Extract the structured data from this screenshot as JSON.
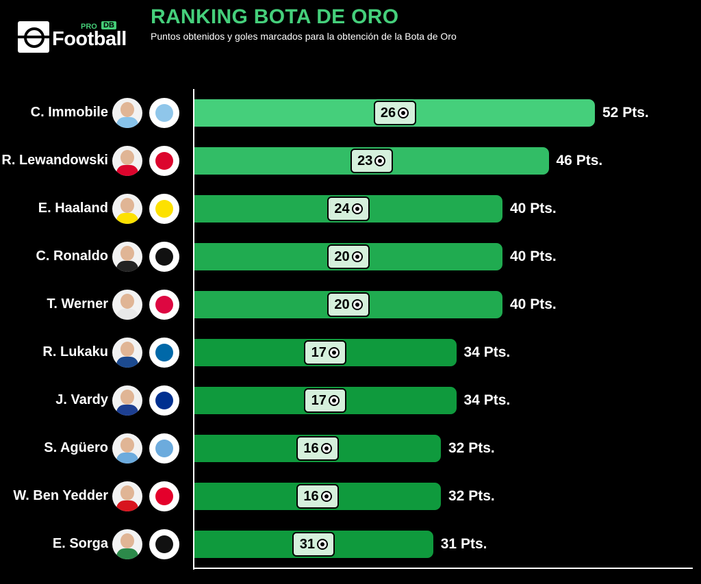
{
  "header": {
    "logo_pro": "PRO",
    "logo_db": "DB",
    "logo_word": "Football",
    "title": "RANKING BOTA DE ORO",
    "subtitle": "Puntos obtenidos y goles marcados para la obtención de la Bota de Oro"
  },
  "colors": {
    "bar_light": "#45cf7b",
    "bar_dark": "#0f9a3d",
    "goal_badge": "#d5f0dc",
    "title": "#45cf7b"
  },
  "chart_data": {
    "type": "bar",
    "orientation": "horizontal",
    "title": "RANKING BOTA DE ORO",
    "subtitle": "Puntos obtenidos y goles marcados para la obtención de la Bota de Oro",
    "xlim": [
      0,
      62
    ],
    "grid": false,
    "categories": [
      "C. Immobile",
      "R. Lewandowski",
      "E. Haaland",
      "C. Ronaldo",
      "T. Werner",
      "R. Lukaku",
      "J. Vardy",
      "S. Agüero",
      "W. Ben Yedder",
      "E. Sorga"
    ],
    "points": [
      52,
      46,
      40,
      40,
      40,
      34,
      34,
      32,
      32,
      31
    ],
    "points_labels": [
      "52 Pts.",
      "46 Pts.",
      "40 Pts.",
      "40 Pts.",
      "40 Pts.",
      "34 Pts.",
      "34 Pts.",
      "32 Pts.",
      "32 Pts.",
      "31 Pts."
    ],
    "goals": [
      26,
      23,
      24,
      20,
      20,
      17,
      17,
      16,
      16,
      31
    ],
    "clubs": [
      "lazio-crest-icon",
      "bayern-crest-icon",
      "dortmund-crest-icon",
      "juventus-crest-icon",
      "leipzig-crest-icon",
      "inter-crest-icon",
      "leicester-crest-icon",
      "man-city-crest-icon",
      "monaco-crest-icon",
      "flora-crest-icon"
    ],
    "club_colors": [
      "#8fc6ea",
      "#dc052d",
      "#fde100",
      "#111111",
      "#dd0741",
      "#0068a8",
      "#003090",
      "#6cabdd",
      "#e4002b",
      "#111111"
    ],
    "kit_colors": [
      "#87c3ea",
      "#dc052d",
      "#fde100",
      "#222222",
      "#e8e8e8",
      "#1c4a8f",
      "#1d3f91",
      "#6cabdd",
      "#d8141e",
      "#2c8a4a"
    ]
  }
}
